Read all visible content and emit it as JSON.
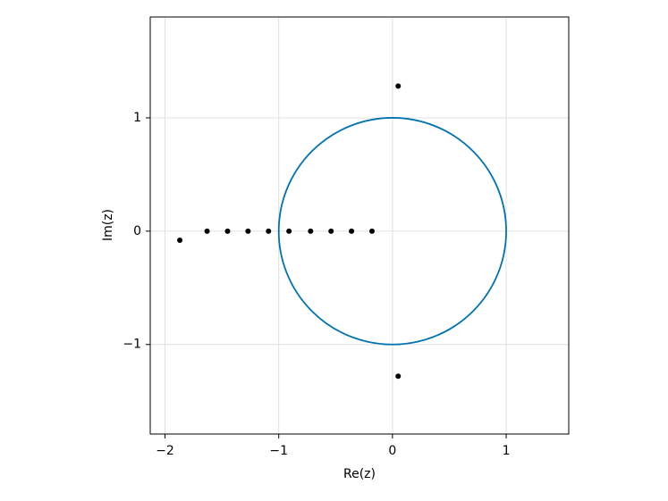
{
  "chart_data": {
    "type": "scatter",
    "x_label": "Re(z)",
    "y_label": "Im(z)",
    "xlim": [
      -2.13,
      1.55
    ],
    "ylim": [
      -1.79,
      1.89
    ],
    "xticks": [
      {
        "value": -2,
        "label": "−2"
      },
      {
        "value": -1,
        "label": "−1"
      },
      0,
      1
    ],
    "yticks": [
      {
        "value": -1,
        "label": "−1"
      },
      0,
      1
    ],
    "grid": true,
    "circle": {
      "center": [
        0,
        0
      ],
      "radius": 1,
      "color": "#0072b2"
    },
    "series": [
      {
        "color": "#000000",
        "x": [
          -1.87,
          -1.63,
          -1.45,
          -1.27,
          -1.09,
          -0.91,
          -0.72,
          -0.54,
          -0.36,
          -0.18,
          0.05,
          0.05
        ],
        "y": [
          -0.08,
          0,
          0,
          0,
          0,
          0,
          0,
          0,
          0,
          0,
          1.28,
          -1.28
        ]
      }
    ]
  }
}
